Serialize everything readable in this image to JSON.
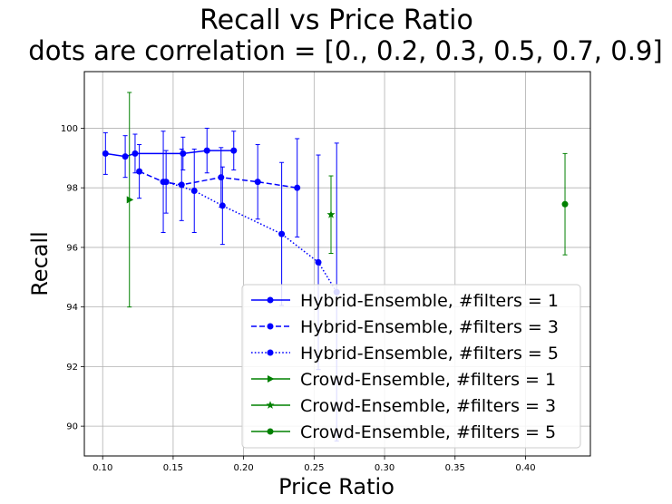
{
  "chart_data": {
    "type": "line",
    "title": "Recall vs Price Ratio",
    "subtitle": "dots are correlation = [0., 0.2, 0.3, 0.5, 0.7, 0.9]",
    "xlabel": "Price Ratio",
    "ylabel": "Recall",
    "xlim": [
      0.087,
      0.446
    ],
    "ylim": [
      89.0,
      101.9
    ],
    "xticks": [
      0.1,
      0.15,
      0.2,
      0.25,
      0.3,
      0.35,
      0.4
    ],
    "xtick_labels": [
      "0.10",
      "0.15",
      "0.20",
      "0.25",
      "0.30",
      "0.35",
      "0.40"
    ],
    "yticks": [
      90,
      92,
      94,
      96,
      98,
      100
    ],
    "ytick_labels": [
      "90",
      "92",
      "94",
      "96",
      "98",
      "100"
    ],
    "grid": true,
    "legend_position": "lower-right",
    "series": [
      {
        "name": "Hybrid-Ensemble, #filters = 1",
        "color": "#0000ff",
        "linestyle": "solid",
        "marker": "circle",
        "x": [
          0.102,
          0.116,
          0.123,
          0.157,
          0.174,
          0.193
        ],
        "y": [
          99.15,
          99.05,
          99.15,
          99.15,
          99.25,
          99.25
        ],
        "err": [
          0.7,
          0.7,
          0.65,
          0.55,
          0.75,
          0.65
        ]
      },
      {
        "name": "Hybrid-Ensemble, #filters = 3",
        "color": "#0000ff",
        "linestyle": "dashed",
        "marker": "circle",
        "x": [
          0.126,
          0.143,
          0.156,
          0.184,
          0.21,
          0.238
        ],
        "y": [
          98.55,
          98.2,
          98.1,
          98.35,
          98.2,
          98.0
        ],
        "err": [
          0.9,
          1.7,
          1.2,
          1.0,
          1.25,
          1.65
        ]
      },
      {
        "name": "Hybrid-Ensemble, #filters = 5",
        "color": "#0000ff",
        "linestyle": "dotted",
        "marker": "circle",
        "x": [
          0.145,
          0.165,
          0.185,
          0.227,
          0.253,
          0.266
        ],
        "y": [
          98.2,
          97.9,
          97.4,
          96.45,
          95.5,
          94.5
        ],
        "err": [
          1.05,
          1.4,
          1.3,
          2.4,
          3.6,
          5.0
        ]
      },
      {
        "name": "Crowd-Ensemble, #filters = 1",
        "color": "#008000",
        "linestyle": "solid",
        "marker": "triangle-right",
        "x": [
          0.119
        ],
        "y": [
          97.6
        ],
        "err": [
          3.6
        ]
      },
      {
        "name": "Crowd-Ensemble, #filters = 3",
        "color": "#008000",
        "linestyle": "solid",
        "marker": "star",
        "x": [
          0.262
        ],
        "y": [
          97.1
        ],
        "err": [
          1.3
        ]
      },
      {
        "name": "Crowd-Ensemble, #filters = 5",
        "color": "#008000",
        "linestyle": "solid",
        "marker": "circle",
        "x": [
          0.428
        ],
        "y": [
          97.45
        ],
        "err": [
          1.7
        ]
      }
    ]
  }
}
